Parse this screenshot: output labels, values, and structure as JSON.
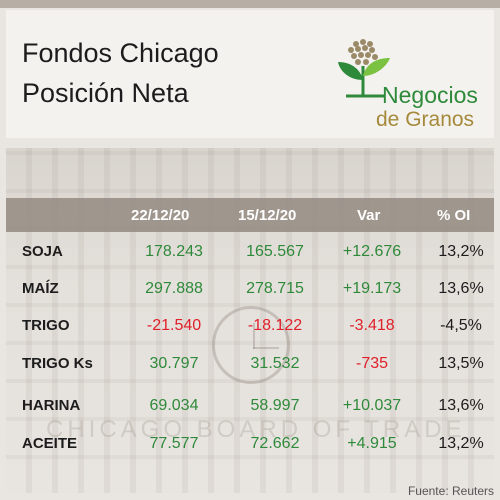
{
  "header": {
    "title_line1": "Fondos Chicago",
    "title_line2": "Posición Neta",
    "logo_line1": "Negocios",
    "logo_line2": "de Granos",
    "brand_green": "#2e8a3a",
    "brand_gold": "#a58a3c"
  },
  "background": {
    "engraving": "CHICAGO BOARD OF TRADE"
  },
  "table": {
    "columns": [
      "",
      "22/12/20",
      "15/12/20",
      "Var",
      "% OI"
    ],
    "rows": [
      {
        "label": "SOJA",
        "c1": "178.243",
        "c2": "165.567",
        "var": "+12.676",
        "oi": "13,2%"
      },
      {
        "label": "MAÍZ",
        "c1": "297.888",
        "c2": "278.715",
        "var": "+19.173",
        "oi": "13,6%"
      },
      {
        "label": "TRIGO",
        "c1": "-21.540",
        "c2": "-18.122",
        "var": "-3.418",
        "oi": "-4,5%"
      },
      {
        "label": "TRIGO Ks",
        "c1": "30.797",
        "c2": "31.532",
        "var": "-735",
        "oi": "13,5%"
      },
      {
        "label": "HARINA",
        "c1": "69.034",
        "c2": "58.997",
        "var": "+10.037",
        "oi": "13,6%"
      },
      {
        "label": "ACEITE",
        "c1": "77.577",
        "c2": "72.662",
        "var": "+4.915",
        "oi": "13,2%"
      }
    ],
    "positive_color": "#2e8a3a",
    "negative_color": "#e0202a"
  },
  "footer": {
    "source": "Fuente: Reuters"
  }
}
